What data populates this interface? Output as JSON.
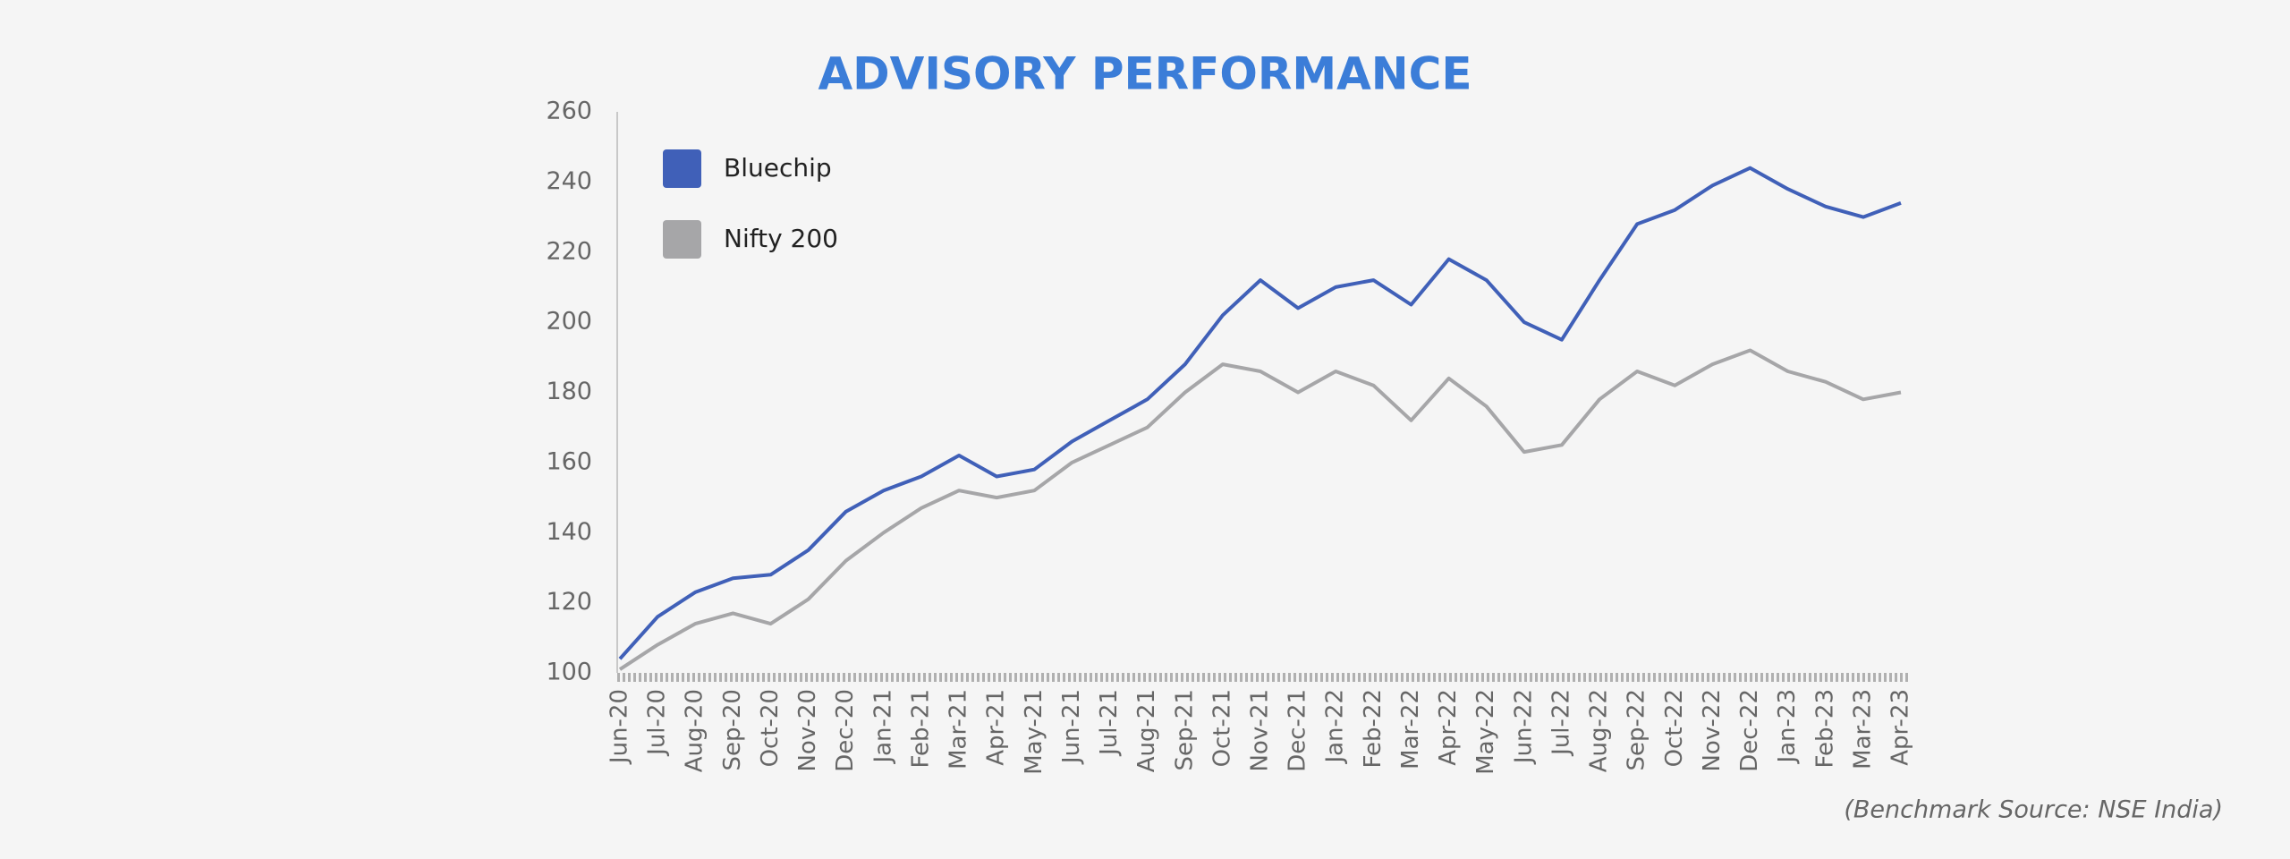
{
  "chart_data": {
    "type": "line",
    "title": "ADVISORY PERFORMANCE",
    "annotation": "(Benchmark Source: NSE India)",
    "categories": [
      "Jun-20",
      "Jul-20",
      "Aug-20",
      "Sep-20",
      "Oct-20",
      "Nov-20",
      "Dec-20",
      "Jan-21",
      "Feb-21",
      "Mar-21",
      "Apr-21",
      "May-21",
      "Jun-21",
      "Jul-21",
      "Aug-21",
      "Sep-21",
      "Oct-21",
      "Nov-21",
      "Dec-21",
      "Jan-22",
      "Feb-22",
      "Mar-22",
      "Apr-22",
      "May-22",
      "Jun-22",
      "Jul-22",
      "Aug-22",
      "Sep-22",
      "Oct-22",
      "Nov-22",
      "Dec-22",
      "Jan-23",
      "Feb-23",
      "Mar-23",
      "Apr-23"
    ],
    "series": [
      {
        "name": "Bluechip",
        "color": "#4060b8",
        "values": [
          104,
          116,
          123,
          127,
          128,
          135,
          146,
          152,
          156,
          162,
          156,
          158,
          166,
          172,
          178,
          188,
          202,
          212,
          204,
          210,
          212,
          205,
          218,
          212,
          200,
          195,
          212,
          228,
          232,
          239,
          244,
          238,
          233,
          230,
          234
        ]
      },
      {
        "name": "Nifty 200",
        "color": "#a6a6a8",
        "values": [
          101,
          108,
          114,
          117,
          114,
          121,
          132,
          140,
          147,
          152,
          150,
          152,
          160,
          165,
          170,
          180,
          188,
          186,
          180,
          186,
          182,
          172,
          184,
          176,
          163,
          165,
          178,
          186,
          182,
          188,
          192,
          186,
          183,
          178,
          180
        ]
      }
    ],
    "ylim": [
      100,
      260
    ],
    "yticks": [
      100,
      120,
      140,
      160,
      180,
      200,
      220,
      240,
      260
    ],
    "grid": false,
    "legend": "top-left"
  }
}
